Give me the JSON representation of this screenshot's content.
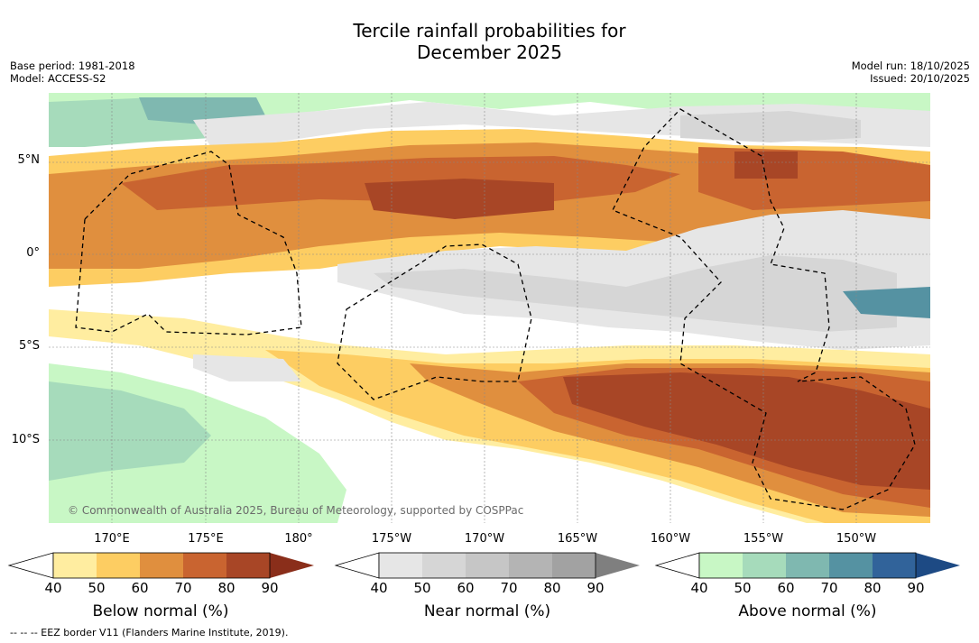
{
  "title_line1": "Tercile rainfall probabilities for",
  "title_line2": "December 2025",
  "base_period": "Base period: 1981-2018",
  "model": "Model: ACCESS-S2",
  "model_run": "Model run: 18/10/2025",
  "issued": "Issued: 20/10/2025",
  "lat_labels": [
    "5°N",
    "0°",
    "5°S",
    "10°S"
  ],
  "lon_labels": [
    "170°E",
    "175°E",
    "180°",
    "175°W",
    "170°W",
    "165°W",
    "160°W",
    "155°W",
    "150°W"
  ],
  "copyright": "© Commonwealth of Australia 2025, Bureau of Meteorology, supported by COSPPac",
  "footer": "--  --  -- EEZ border V11 (Flanders Marine Institute, 2019).",
  "legends": [
    {
      "label": "Below normal (%)",
      "ticks": [
        "40",
        "50",
        "60",
        "70",
        "80",
        "90"
      ],
      "colors": [
        "#ffeda0",
        "#fdcd62",
        "#e08f3e",
        "#c96430",
        "#a84626",
        "#8a2e1a"
      ]
    },
    {
      "label": "Near normal (%)",
      "ticks": [
        "40",
        "50",
        "60",
        "70",
        "80",
        "90"
      ],
      "colors": [
        "#e6e6e6",
        "#d6d6d6",
        "#c6c6c6",
        "#b4b4b4",
        "#a2a2a2",
        "#7f7f7f"
      ]
    },
    {
      "label": "Above normal (%)",
      "ticks": [
        "40",
        "50",
        "60",
        "70",
        "80",
        "90"
      ],
      "colors": [
        "#c8f7c5",
        "#a6dbbb",
        "#7fb8b0",
        "#5592a2",
        "#31639a",
        "#1d4a84"
      ]
    }
  ]
}
